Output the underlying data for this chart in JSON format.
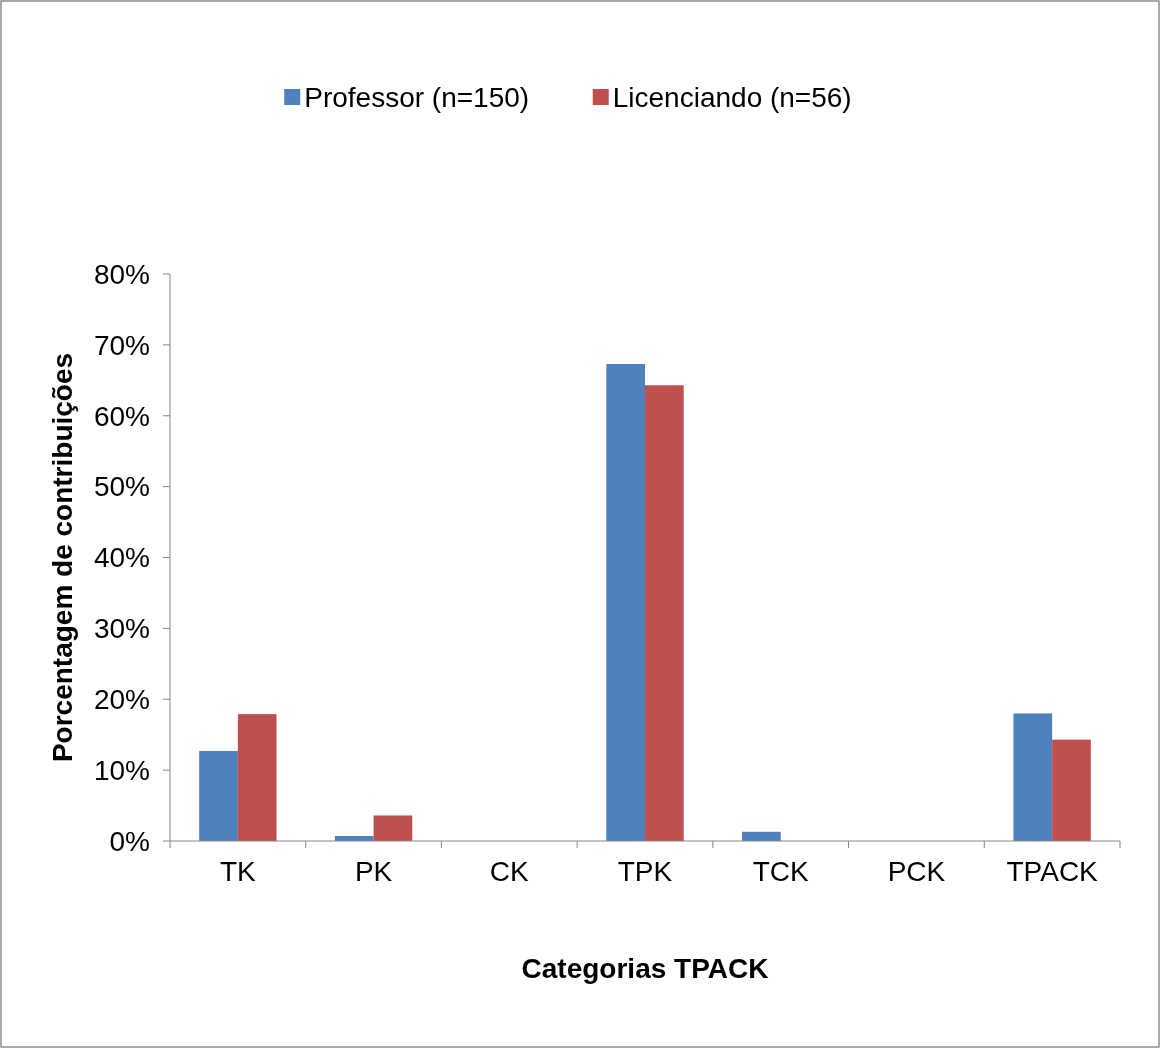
{
  "chart_data": {
    "type": "bar",
    "xlabel": "Categorias TPACK",
    "ylabel": "Porcentagem de contribuições",
    "categories": [
      "TK",
      "PK",
      "CK",
      "TPK",
      "TCK",
      "PCK",
      "TPACK"
    ],
    "series": [
      {
        "name": "Professor (n=150)",
        "color": "#4f81bd",
        "values": [
          12.7,
          0.7,
          0,
          67.3,
          1.3,
          0,
          18.0
        ]
      },
      {
        "name": "Licenciando (n=56)",
        "color": "#c0504d",
        "values": [
          17.9,
          3.6,
          0,
          64.3,
          0,
          0,
          14.3
        ]
      }
    ],
    "ylim": [
      0,
      80
    ],
    "yticks": [
      {
        "value": 0,
        "label": "0%"
      },
      {
        "value": 10,
        "label": "10%"
      },
      {
        "value": 20,
        "label": "20%"
      },
      {
        "value": 30,
        "label": "30%"
      },
      {
        "value": 40,
        "label": "40%"
      },
      {
        "value": 50,
        "label": "50%"
      },
      {
        "value": 60,
        "label": "60%"
      },
      {
        "value": 70,
        "label": "70%"
      },
      {
        "value": 80,
        "label": "80%"
      }
    ],
    "grid": false,
    "legend": "top"
  }
}
